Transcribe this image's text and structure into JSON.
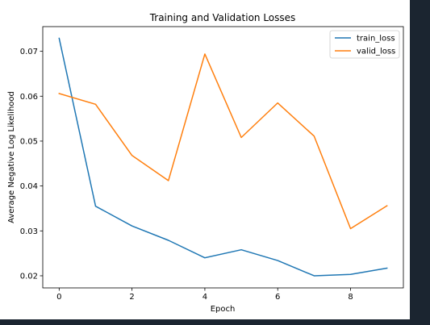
{
  "chart_data": {
    "type": "line",
    "title": "Training and Validation Losses",
    "xlabel": "Epoch",
    "ylabel": "Average Negative Log Likelihood",
    "x": [
      0,
      1,
      2,
      3,
      4,
      5,
      6,
      7,
      8,
      9
    ],
    "xlim": [
      -0.45,
      9.45
    ],
    "ylim": [
      0.0173,
      0.0755
    ],
    "xticks": [
      0,
      2,
      4,
      6,
      8
    ],
    "xtick_labels": [
      "0",
      "2",
      "4",
      "6",
      "8"
    ],
    "yticks": [
      0.02,
      0.03,
      0.04,
      0.05,
      0.06,
      0.07
    ],
    "ytick_labels": [
      "0.02",
      "0.03",
      "0.04",
      "0.05",
      "0.06",
      "0.07"
    ],
    "grid": false,
    "legend_position": "top-right",
    "series": [
      {
        "name": "train_loss",
        "color": "#1f77b4",
        "values": [
          0.0729,
          0.0355,
          0.0311,
          0.0279,
          0.024,
          0.0258,
          0.0234,
          0.02,
          0.0203,
          0.0217
        ]
      },
      {
        "name": "valid_loss",
        "color": "#ff7f0e",
        "values": [
          0.0606,
          0.0582,
          0.0468,
          0.0412,
          0.0694,
          0.0508,
          0.0585,
          0.0511,
          0.0305,
          0.0356
        ]
      }
    ]
  }
}
